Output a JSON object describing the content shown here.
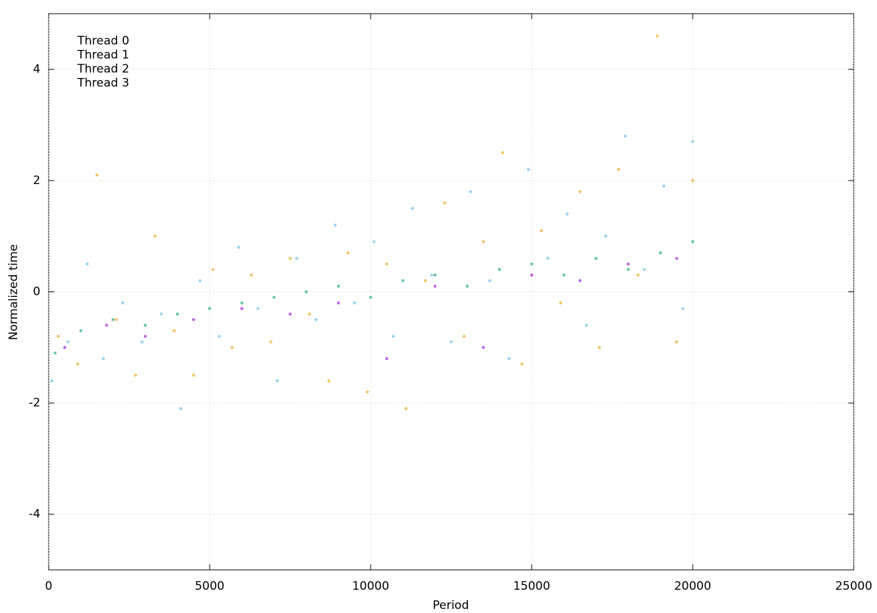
{
  "chart_data": {
    "type": "scatter",
    "x_label": "Period",
    "y_label": "Normalized time",
    "xlim": [
      0,
      25000
    ],
    "xticks": [
      0,
      5000,
      10000,
      15000,
      20000,
      25000
    ],
    "ylim": [
      -5,
      5
    ],
    "yticks": [
      -4,
      -2,
      0,
      2,
      4
    ],
    "grid": true,
    "legend": "upper left",
    "series": [
      {
        "name": "Thread 0",
        "color": "#9400d3",
        "x": [
          500,
          1800,
          3000,
          4500,
          6000,
          7500,
          9000,
          10500,
          12000,
          13500,
          15000,
          16500,
          18000,
          19500
        ],
        "values": [
          -1.0,
          -0.6,
          -0.8,
          -0.5,
          -0.3,
          -0.4,
          -0.2,
          -1.2,
          0.1,
          -1.0,
          0.3,
          0.2,
          0.5,
          0.6
        ]
      },
      {
        "name": "Thread 1",
        "color": "#009e73",
        "x": [
          200,
          1000,
          2000,
          3000,
          4000,
          5000,
          6000,
          7000,
          8000,
          9000,
          10000,
          11000,
          12000,
          13000,
          14000,
          15000,
          16000,
          17000,
          18000,
          19000,
          20000
        ],
        "values": [
          -1.1,
          -0.7,
          -0.5,
          -0.6,
          -0.4,
          -0.3,
          -0.2,
          -0.1,
          0.0,
          0.1,
          -0.1,
          0.2,
          0.3,
          0.1,
          0.4,
          0.5,
          0.3,
          0.6,
          0.4,
          0.7,
          0.9
        ]
      },
      {
        "name": "Thread 2",
        "color": "#56b4e9",
        "x": [
          100,
          600,
          1200,
          1700,
          2300,
          2900,
          3500,
          4100,
          4700,
          5300,
          5900,
          6500,
          7100,
          7700,
          8300,
          8900,
          9500,
          10100,
          10700,
          11300,
          11900,
          12500,
          13100,
          13700,
          14300,
          14900,
          15500,
          16100,
          16700,
          17300,
          17900,
          18500,
          19100,
          19700,
          20000
        ],
        "values": [
          -1.6,
          -0.9,
          0.5,
          -1.2,
          -0.2,
          -0.9,
          -0.4,
          -2.1,
          0.2,
          -0.8,
          0.8,
          -0.3,
          -1.6,
          0.6,
          -0.5,
          1.2,
          -0.2,
          0.9,
          -0.8,
          1.5,
          0.3,
          -0.9,
          1.8,
          0.2,
          -1.2,
          2.2,
          0.6,
          1.4,
          -0.6,
          1.0,
          2.8,
          0.4,
          1.9,
          -0.3,
          2.7
        ]
      },
      {
        "name": "Thread 3",
        "color": "#e69f00",
        "x": [
          300,
          900,
          1500,
          2100,
          2700,
          3300,
          3900,
          4500,
          5100,
          5700,
          6300,
          6900,
          7500,
          8100,
          8700,
          9300,
          9900,
          10500,
          11100,
          11700,
          12300,
          12900,
          13500,
          14100,
          14700,
          15300,
          15900,
          16500,
          17100,
          17700,
          18300,
          18900,
          19500,
          20000
        ],
        "values": [
          -0.8,
          -1.3,
          2.1,
          -0.5,
          -1.5,
          1.0,
          -0.7,
          -1.5,
          0.4,
          -1.0,
          0.3,
          -0.9,
          0.6,
          -0.4,
          -1.6,
          0.7,
          -1.8,
          0.5,
          -2.1,
          0.2,
          1.6,
          -0.8,
          0.9,
          2.5,
          -1.3,
          1.1,
          -0.2,
          1.8,
          -1.0,
          2.2,
          0.3,
          4.6,
          -0.9,
          2.0
        ]
      }
    ]
  }
}
